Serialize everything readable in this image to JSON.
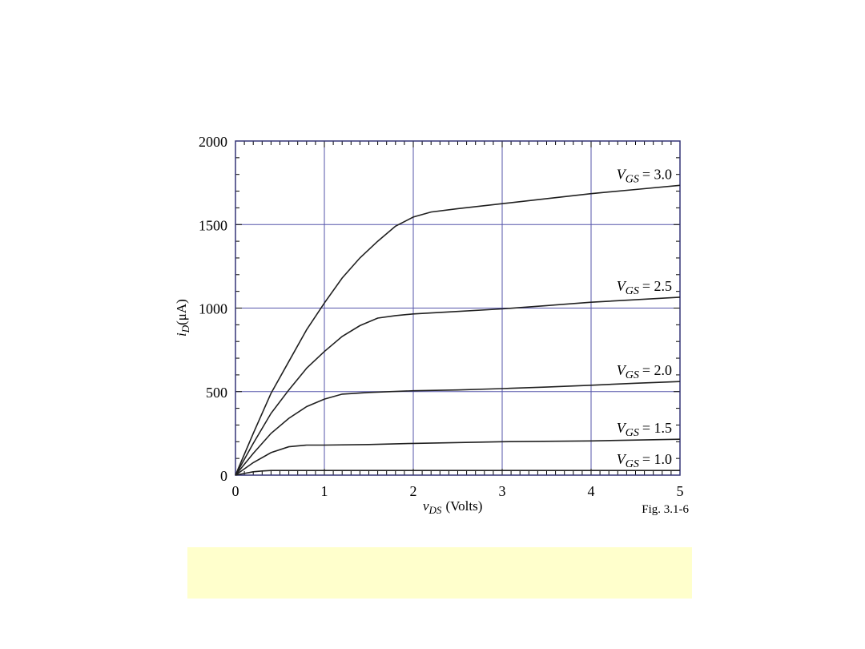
{
  "chart_data": {
    "type": "line",
    "xlabel_var": "v",
    "xlabel_sub": "DS",
    "xlabel_unit": "(Volts)",
    "ylabel_var": "i",
    "ylabel_sub": "D",
    "ylabel_unit": "(μA)",
    "xlim": [
      0,
      5
    ],
    "ylim": [
      0,
      2000
    ],
    "x_ticks": [
      0,
      1,
      2,
      3,
      4,
      5
    ],
    "y_ticks": [
      0,
      500,
      1000,
      1500,
      2000
    ],
    "x_tick_labels": [
      "0",
      "1",
      "2",
      "3",
      "4",
      "5"
    ],
    "y_tick_labels": [
      "0",
      "500",
      "1000",
      "1500",
      "2000"
    ],
    "grid": true,
    "caption": "Fig. 3.1-6",
    "series": [
      {
        "label_var": "V",
        "label_sub": "GS",
        "label_value": "= 3.0",
        "x": [
          0,
          0.2,
          0.4,
          0.6,
          0.8,
          1.0,
          1.2,
          1.4,
          1.6,
          1.8,
          2.0,
          2.2,
          2.5,
          3.0,
          3.5,
          4.0,
          4.5,
          5.0
        ],
        "y": [
          0,
          250,
          490,
          680,
          870,
          1030,
          1180,
          1300,
          1400,
          1490,
          1545,
          1575,
          1595,
          1625,
          1655,
          1685,
          1710,
          1735
        ]
      },
      {
        "label_var": "V",
        "label_sub": "GS",
        "label_value": "= 2.5",
        "x": [
          0,
          0.2,
          0.4,
          0.6,
          0.8,
          1.0,
          1.2,
          1.4,
          1.6,
          1.8,
          2.0,
          2.5,
          3.0,
          3.5,
          4.0,
          4.5,
          5.0
        ],
        "y": [
          0,
          190,
          370,
          510,
          640,
          740,
          830,
          895,
          940,
          955,
          965,
          980,
          995,
          1015,
          1035,
          1050,
          1065
        ]
      },
      {
        "label_var": "V",
        "label_sub": "GS",
        "label_value": "= 2.0",
        "x": [
          0,
          0.2,
          0.4,
          0.6,
          0.8,
          1.0,
          1.2,
          1.5,
          2.0,
          2.5,
          3.0,
          3.5,
          4.0,
          4.5,
          5.0
        ],
        "y": [
          0,
          130,
          250,
          340,
          410,
          455,
          485,
          495,
          505,
          510,
          518,
          527,
          538,
          550,
          560
        ]
      },
      {
        "label_var": "V",
        "label_sub": "GS",
        "label_value": "= 1.5",
        "x": [
          0,
          0.2,
          0.4,
          0.6,
          0.8,
          1.0,
          1.5,
          2.0,
          3.0,
          4.0,
          5.0
        ],
        "y": [
          0,
          75,
          135,
          170,
          180,
          180,
          183,
          190,
          200,
          205,
          215
        ]
      },
      {
        "label_var": "V",
        "label_sub": "GS",
        "label_value": "= 1.0",
        "x": [
          0,
          0.1,
          0.2,
          0.3,
          0.4,
          0.6,
          1.0,
          2.0,
          3.0,
          4.0,
          5.0
        ],
        "y": [
          0,
          10,
          20,
          25,
          28,
          28,
          28,
          28,
          28,
          28,
          28
        ]
      }
    ]
  },
  "note_box": {
    "color": "#ffffcc"
  },
  "colors": {
    "grid": "#5555aa",
    "curve": "#202020",
    "axis": "#333377"
  }
}
